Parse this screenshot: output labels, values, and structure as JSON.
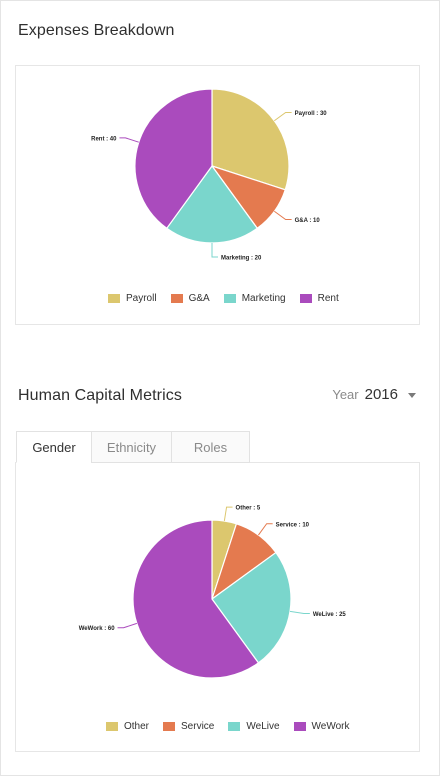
{
  "expenses": {
    "title": "Expenses Breakdown",
    "chart_data": {
      "type": "pie",
      "categories": [
        "Payroll",
        "G&A",
        "Marketing",
        "Rent"
      ],
      "values": [
        30,
        10,
        20,
        40
      ],
      "slice_labels": [
        "Payroll : 30",
        "G&A : 10",
        "Marketing : 20",
        "Rent : 40"
      ],
      "colors": [
        "#dcc76e",
        "#e47a4f",
        "#7ad6cc",
        "#aa4bbd"
      ],
      "legend": "bottom"
    }
  },
  "human_capital": {
    "title": "Human Capital Metrics",
    "year_label": "Year",
    "year_value": "2016",
    "tabs": [
      "Gender",
      "Ethnicity",
      "Roles"
    ],
    "active_tab": 0,
    "chart_data": {
      "type": "pie",
      "categories": [
        "Other",
        "Service",
        "WeLive",
        "WeWork"
      ],
      "values": [
        5,
        10,
        25,
        60
      ],
      "slice_labels": [
        "Other : 5",
        "Service : 10",
        "WeLive : 25",
        "WeWork : 60"
      ],
      "colors": [
        "#dcc76e",
        "#e47a4f",
        "#7ad6cc",
        "#aa4bbd"
      ],
      "legend": "bottom"
    }
  },
  "icons": {
    "year_dropdown": "caret-down-icon"
  }
}
